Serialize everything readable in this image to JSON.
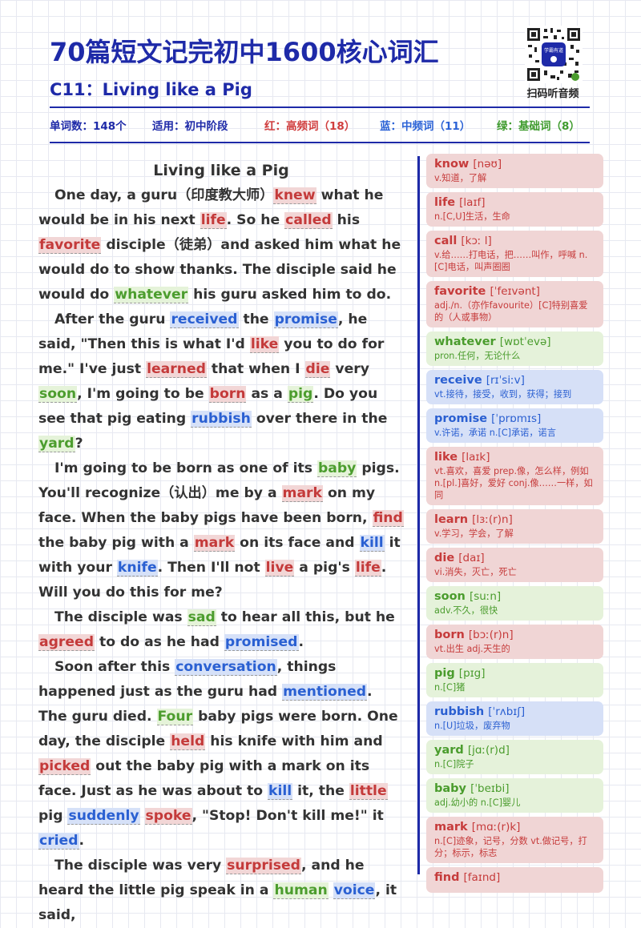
{
  "header": {
    "title": "70篇短文记完初中1600核心词汇",
    "lesson": "C11：Living like a Pig",
    "qr_badge": "学霸有道",
    "qr_caption": "扫码听音频"
  },
  "stats": {
    "word_count": "单词数：148个",
    "level": "适用：初中阶段",
    "red": "红：高频词（18）",
    "blue": "蓝：中频词（11）",
    "green": "绿：基础词（8）"
  },
  "colors": {
    "accent": "#1e2aa8",
    "red": "#c63b3b",
    "blue": "#2a5fd1",
    "green": "#4a9c2d"
  },
  "article": {
    "title": "Living like a Pig",
    "paragraphs": [
      [
        {
          "t": "One day, a guru（印度教大师）"
        },
        {
          "t": "knew",
          "c": "r"
        },
        {
          "t": " what he would be in his next "
        },
        {
          "t": "life",
          "c": "r"
        },
        {
          "t": ". So he "
        },
        {
          "t": "called",
          "c": "r"
        },
        {
          "t": " his "
        },
        {
          "t": "favorite",
          "c": "r"
        },
        {
          "t": " disciple（徒弟）and asked him what he would do to show thanks. The disciple said he would do "
        },
        {
          "t": "whatever",
          "c": "g"
        },
        {
          "t": " his guru asked him to do."
        }
      ],
      [
        {
          "t": "After the guru "
        },
        {
          "t": "received",
          "c": "b"
        },
        {
          "t": " the "
        },
        {
          "t": "promise",
          "c": "b"
        },
        {
          "t": ", he said, \"Then this is what I'd "
        },
        {
          "t": "like",
          "c": "r"
        },
        {
          "t": " you to do for me.\" I've just "
        },
        {
          "t": "learned",
          "c": "r"
        },
        {
          "t": " that when I "
        },
        {
          "t": "die",
          "c": "r"
        },
        {
          "t": " very "
        },
        {
          "t": "soon",
          "c": "g"
        },
        {
          "t": ", I'm going to be "
        },
        {
          "t": "born",
          "c": "r"
        },
        {
          "t": " as a "
        },
        {
          "t": "pig",
          "c": "g"
        },
        {
          "t": ". Do you see that pig eating "
        },
        {
          "t": "rubbish",
          "c": "b"
        },
        {
          "t": " over there in the "
        },
        {
          "t": "yard",
          "c": "g"
        },
        {
          "t": "?"
        }
      ],
      [
        {
          "t": "I'm going to be born as one of its "
        },
        {
          "t": "baby",
          "c": "g"
        },
        {
          "t": " pigs. You'll recognize（认出）me by a "
        },
        {
          "t": "mark",
          "c": "r"
        },
        {
          "t": " on my face. When the baby pigs have been born, "
        },
        {
          "t": "find",
          "c": "r"
        },
        {
          "t": " the baby pig with a "
        },
        {
          "t": "mark",
          "c": "r"
        },
        {
          "t": " on its face and "
        },
        {
          "t": "kill",
          "c": "b"
        },
        {
          "t": " it with your "
        },
        {
          "t": "knife",
          "c": "b"
        },
        {
          "t": ". Then I'll not "
        },
        {
          "t": "live",
          "c": "r"
        },
        {
          "t": " a pig's "
        },
        {
          "t": "life",
          "c": "r"
        },
        {
          "t": ". Will you do this for me?"
        }
      ],
      [
        {
          "t": "The disciple was "
        },
        {
          "t": "sad",
          "c": "g"
        },
        {
          "t": " to hear all this, but he "
        },
        {
          "t": "agreed",
          "c": "r"
        },
        {
          "t": " to do as he had "
        },
        {
          "t": "promised",
          "c": "b"
        },
        {
          "t": "."
        }
      ],
      [
        {
          "t": "Soon after this "
        },
        {
          "t": "conversation",
          "c": "b"
        },
        {
          "t": ", things happened just as the guru had "
        },
        {
          "t": "mentioned",
          "c": "b"
        },
        {
          "t": ". The guru died. "
        },
        {
          "t": "Four",
          "c": "g"
        },
        {
          "t": " baby pigs were born. One day, the disciple "
        },
        {
          "t": "held",
          "c": "r"
        },
        {
          "t": " his knife with him and "
        },
        {
          "t": "picked",
          "c": "r"
        },
        {
          "t": " out the baby pig with a mark on its face. Just as he was about to "
        },
        {
          "t": "kill",
          "c": "b"
        },
        {
          "t": " it, the "
        },
        {
          "t": "little",
          "c": "r"
        },
        {
          "t": " pig "
        },
        {
          "t": "suddenly",
          "c": "b"
        },
        {
          "t": " "
        },
        {
          "t": "spoke",
          "c": "r"
        },
        {
          "t": ", \"Stop! Don't kill me!\" it "
        },
        {
          "t": "cried",
          "c": "b"
        },
        {
          "t": "."
        }
      ],
      [
        {
          "t": "The disciple was very "
        },
        {
          "t": "surprised",
          "c": "r"
        },
        {
          "t": ", and he heard the little pig speak in a "
        },
        {
          "t": "human",
          "c": "g"
        },
        {
          "t": " "
        },
        {
          "t": "voice",
          "c": "b"
        },
        {
          "t": ", it said,"
        }
      ]
    ]
  },
  "vocab": [
    {
      "word": "know",
      "phon": "[nəʊ]",
      "def": "v.知道，了解",
      "c": "r"
    },
    {
      "word": "life",
      "phon": "[laɪf]",
      "def": "n.[C,U]生活，生命",
      "c": "r"
    },
    {
      "word": "call",
      "phon": "[kɔː l]",
      "def": "v.给……打电话，把……叫作，呼喊 n.[C]电话，叫声圈圈",
      "c": "r"
    },
    {
      "word": "favorite",
      "phon": "[ˈfeɪvənt]",
      "def": "adj./n.（亦作favourite）[C]特别喜爱的（人或事物）",
      "c": "r"
    },
    {
      "word": "whatever",
      "phon": "[wɒtˈevə]",
      "def": "pron.任何，无论什么",
      "c": "g"
    },
    {
      "word": "receive",
      "phon": "[rɪˈsiːv]",
      "def": "vt.接待，接受，收到，获得；接到",
      "c": "b"
    },
    {
      "word": "promise",
      "phon": "[ˈprɒmɪs]",
      "def": "v.许诺，承诺 n.[C]承诺，诺言",
      "c": "b"
    },
    {
      "word": "like",
      "phon": "[laɪk]",
      "def": "vt.喜欢，喜爱 prep.像，怎么样，例如 n.[pl.]喜好，爱好 conj.像……一样，如同",
      "c": "r"
    },
    {
      "word": "learn",
      "phon": "[lɜː(r)n]",
      "def": "v.学习，学会，了解",
      "c": "r"
    },
    {
      "word": "die",
      "phon": "[daɪ]",
      "def": "vi.消失，灭亡，死亡",
      "c": "r"
    },
    {
      "word": "soon",
      "phon": "[suːn]",
      "def": "adv.不久，很快",
      "c": "g"
    },
    {
      "word": "born",
      "phon": "[bɔː(r)n]",
      "def": "vt.出生 adj.天生的",
      "c": "r"
    },
    {
      "word": "pig",
      "phon": "[pɪg]",
      "def": "n.[C]猪",
      "c": "g"
    },
    {
      "word": "rubbish",
      "phon": "[ˈrʌbɪʃ]",
      "def": "n.[U]垃圾，废弃物",
      "c": "b"
    },
    {
      "word": "yard",
      "phon": "[jɑː(r)d]",
      "def": "n.[C]院子",
      "c": "g"
    },
    {
      "word": "baby",
      "phon": "[ˈbeɪbi]",
      "def": "adj.幼小的 n.[C]婴儿",
      "c": "g"
    },
    {
      "word": "mark",
      "phon": "[mɑː(r)k]",
      "def": "n.[C]迹象，记号，分数 vt.做记号，打分；标示，标志",
      "c": "r"
    },
    {
      "word": "find",
      "phon": "[faɪnd]",
      "def": "",
      "c": "r"
    }
  ]
}
